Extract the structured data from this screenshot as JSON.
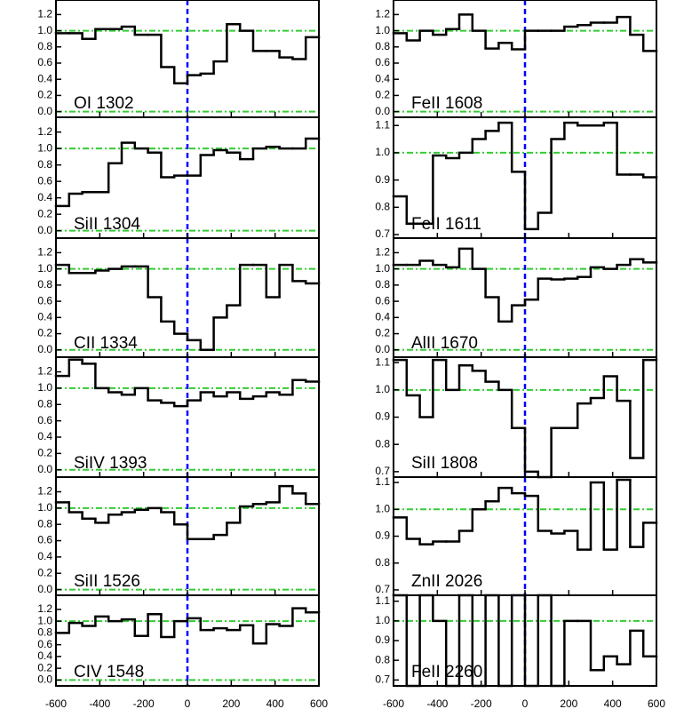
{
  "chart_data": [
    {
      "type": "step",
      "title": "OI 1302",
      "color": "#000000",
      "ref_color": "#33cc33",
      "zero_color": "#0000ff",
      "hlines": [
        0,
        1
      ],
      "vline": 0,
      "x": [
        -570,
        -510,
        -450,
        -390,
        -330,
        -270,
        -210,
        -150,
        -90,
        -30,
        30,
        90,
        150,
        210,
        270,
        330,
        390,
        450,
        510,
        570
      ],
      "values": [
        0.97,
        0.97,
        0.9,
        1.02,
        1.02,
        1.05,
        0.95,
        0.95,
        0.55,
        0.35,
        0.45,
        0.47,
        0.62,
        1.08,
        1.0,
        0.75,
        0.75,
        0.67,
        0.65,
        0.92
      ],
      "xlim": [
        -600,
        600
      ],
      "xticks": [
        -600,
        -400,
        -200,
        0,
        200,
        400,
        600
      ],
      "ylim": [
        -0.07,
        1.38
      ],
      "yticks": [
        {
          "value": 0,
          "label": "0.0"
        },
        0.2,
        0.4,
        0.6,
        0.8,
        {
          "value": 1,
          "label": "1.0"
        },
        1.2
      ]
    },
    {
      "type": "step",
      "title": "SiII 1304",
      "color": "#000000",
      "ref_color": "#33cc33",
      "zero_color": "#0000ff",
      "hlines": [
        0,
        1
      ],
      "vline": 0,
      "x": [
        -570,
        -510,
        -450,
        -390,
        -330,
        -270,
        -210,
        -150,
        -90,
        -30,
        30,
        90,
        150,
        210,
        270,
        330,
        390,
        450,
        510,
        570
      ],
      "values": [
        0.3,
        0.45,
        0.47,
        0.47,
        0.82,
        1.07,
        1.0,
        0.95,
        0.65,
        0.67,
        0.67,
        0.92,
        0.98,
        0.95,
        0.87,
        1.0,
        1.02,
        1.0,
        1.0,
        1.12
      ],
      "xlim": [
        -600,
        600
      ],
      "xticks": [
        -600,
        -400,
        -200,
        0,
        200,
        400,
        600
      ],
      "ylim": [
        -0.09,
        1.38
      ],
      "yticks": [
        {
          "value": 0,
          "label": "0.0"
        },
        0.2,
        0.4,
        0.6,
        0.8,
        {
          "value": 1,
          "label": "1.0"
        },
        1.2
      ]
    },
    {
      "type": "step",
      "title": "CII 1334",
      "color": "#000000",
      "ref_color": "#33cc33",
      "zero_color": "#0000ff",
      "hlines": [
        0,
        1
      ],
      "vline": 0,
      "x": [
        -570,
        -510,
        -450,
        -390,
        -330,
        -270,
        -210,
        -150,
        -90,
        -30,
        30,
        90,
        150,
        210,
        270,
        330,
        390,
        450,
        510,
        570
      ],
      "values": [
        1.05,
        0.95,
        0.95,
        0.98,
        1.0,
        1.03,
        1.03,
        0.65,
        0.35,
        0.2,
        0.12,
        0.0,
        0.4,
        0.55,
        1.05,
        1.05,
        0.65,
        1.05,
        0.85,
        0.82
      ],
      "xlim": [
        -600,
        600
      ],
      "xticks": [
        -600,
        -400,
        -200,
        0,
        200,
        400,
        600
      ],
      "ylim": [
        -0.09,
        1.38
      ],
      "yticks": [
        {
          "value": 0,
          "label": "0.0"
        },
        0.2,
        0.4,
        0.6,
        0.8,
        {
          "value": 1,
          "label": "1.0"
        },
        1.2
      ]
    },
    {
      "type": "step",
      "title": "SiIV 1393",
      "color": "#000000",
      "ref_color": "#33cc33",
      "zero_color": "#0000ff",
      "hlines": [
        0,
        1
      ],
      "vline": 0,
      "x": [
        -570,
        -510,
        -450,
        -390,
        -330,
        -270,
        -210,
        -150,
        -90,
        -30,
        30,
        90,
        150,
        210,
        270,
        330,
        390,
        450,
        510,
        570
      ],
      "values": [
        1.15,
        1.35,
        1.3,
        1.0,
        0.95,
        0.92,
        1.0,
        0.85,
        0.82,
        0.78,
        0.85,
        0.95,
        0.9,
        0.95,
        0.87,
        0.9,
        0.95,
        0.92,
        1.1,
        1.08
      ],
      "xlim": [
        -600,
        600
      ],
      "xticks": [
        -600,
        -400,
        -200,
        0,
        200,
        400,
        600
      ],
      "ylim": [
        -0.09,
        1.38
      ],
      "yticks": [
        {
          "value": 0,
          "label": "0.0"
        },
        0.2,
        0.4,
        0.6,
        0.8,
        {
          "value": 1,
          "label": "1.0"
        },
        1.2
      ]
    },
    {
      "type": "step",
      "title": "SiII 1526",
      "color": "#000000",
      "ref_color": "#33cc33",
      "zero_color": "#0000ff",
      "hlines": [
        0,
        1
      ],
      "vline": 0,
      "x": [
        -570,
        -510,
        -450,
        -390,
        -330,
        -270,
        -210,
        -150,
        -90,
        -30,
        30,
        90,
        150,
        210,
        270,
        330,
        390,
        450,
        510,
        570
      ],
      "values": [
        1.07,
        0.95,
        0.87,
        0.82,
        0.92,
        0.95,
        0.98,
        1.0,
        0.95,
        0.8,
        0.62,
        0.62,
        0.67,
        0.82,
        1.02,
        1.05,
        1.07,
        1.27,
        1.18,
        1.05
      ],
      "xlim": [
        -600,
        600
      ],
      "xticks": [
        -600,
        -400,
        -200,
        0,
        200,
        400,
        600
      ],
      "ylim": [
        -0.07,
        1.38
      ],
      "yticks": [
        {
          "value": 0,
          "label": "0.0"
        },
        0.2,
        0.4,
        0.6,
        0.8,
        {
          "value": 1,
          "label": "1.0"
        },
        1.2
      ]
    },
    {
      "type": "step",
      "title": "CIV 1548",
      "color": "#000000",
      "ref_color": "#33cc33",
      "zero_color": "#0000ff",
      "hlines": [
        0,
        1
      ],
      "vline": 0,
      "x": [
        -570,
        -510,
        -450,
        -390,
        -330,
        -270,
        -210,
        -150,
        -90,
        -30,
        30,
        90,
        150,
        210,
        270,
        330,
        390,
        450,
        510,
        570
      ],
      "values": [
        0.8,
        0.97,
        0.92,
        1.08,
        1.0,
        1.03,
        0.75,
        1.12,
        0.73,
        1.0,
        1.05,
        0.85,
        0.88,
        0.85,
        0.93,
        0.62,
        0.95,
        0.92,
        1.22,
        1.15
      ],
      "xlim": [
        -600,
        600
      ],
      "xticks": [
        -600,
        -400,
        -200,
        0,
        200,
        400,
        600
      ],
      "ylim": [
        -0.1,
        1.44
      ],
      "yticks": [
        {
          "value": 0,
          "label": "0.0"
        },
        0.2,
        0.4,
        0.6,
        0.8,
        {
          "value": 1,
          "label": "1.0"
        },
        1.2
      ]
    },
    {
      "type": "step",
      "title": "FeII 1608",
      "color": "#000000",
      "ref_color": "#33cc33",
      "zero_color": "#0000ff",
      "hlines": [
        0,
        1
      ],
      "vline": 0,
      "x": [
        -570,
        -510,
        -450,
        -390,
        -330,
        -270,
        -210,
        -150,
        -90,
        -30,
        30,
        90,
        150,
        210,
        270,
        330,
        390,
        450,
        510,
        570
      ],
      "values": [
        0.97,
        0.88,
        1.0,
        0.95,
        1.02,
        1.2,
        1.0,
        0.78,
        0.85,
        0.77,
        1.0,
        1.0,
        1.0,
        1.05,
        1.07,
        1.1,
        1.1,
        1.17,
        0.95,
        0.75
      ],
      "xlim": [
        -600,
        600
      ],
      "xticks": [
        -600,
        -400,
        -200,
        0,
        200,
        400,
        600
      ],
      "ylim": [
        -0.07,
        1.38
      ],
      "yticks": [
        {
          "value": 0,
          "label": "0.0"
        },
        0.2,
        0.4,
        0.6,
        0.8,
        {
          "value": 1,
          "label": "1.0"
        },
        1.2
      ]
    },
    {
      "type": "step",
      "title": "FeII 1611",
      "color": "#000000",
      "ref_color": "#33cc33",
      "zero_color": "#0000ff",
      "hlines": [
        1
      ],
      "vline": 0,
      "x": [
        -570,
        -510,
        -450,
        -390,
        -330,
        -270,
        -210,
        -150,
        -90,
        -30,
        30,
        90,
        150,
        210,
        270,
        330,
        390,
        450,
        510,
        570
      ],
      "values": [
        0.84,
        0.74,
        0.74,
        0.99,
        0.98,
        1.0,
        1.05,
        1.08,
        1.11,
        0.93,
        0.72,
        0.78,
        1.05,
        1.11,
        1.1,
        1.1,
        1.11,
        0.92,
        0.92,
        0.91
      ],
      "xlim": [
        -600,
        600
      ],
      "xticks": [
        -600,
        -400,
        -200,
        0,
        200,
        400,
        600
      ],
      "ylim": [
        0.687,
        1.13
      ],
      "yticks": [
        0.7,
        0.8,
        0.9,
        {
          "value": 1,
          "label": "1.0"
        },
        1.1
      ]
    },
    {
      "type": "step",
      "title": "AlII 1670",
      "color": "#000000",
      "ref_color": "#33cc33",
      "zero_color": "#0000ff",
      "hlines": [
        0,
        1
      ],
      "vline": 0,
      "x": [
        -570,
        -510,
        -450,
        -390,
        -330,
        -270,
        -210,
        -150,
        -90,
        -30,
        30,
        90,
        150,
        210,
        270,
        330,
        390,
        450,
        510,
        570
      ],
      "values": [
        1.05,
        1.05,
        1.1,
        1.05,
        1.02,
        1.25,
        1.0,
        0.65,
        0.35,
        0.55,
        0.62,
        0.88,
        0.87,
        0.88,
        0.9,
        1.02,
        1.0,
        1.05,
        1.12,
        1.08
      ],
      "xlim": [
        -600,
        600
      ],
      "xticks": [
        -600,
        -400,
        -200,
        0,
        200,
        400,
        600
      ],
      "ylim": [
        -0.09,
        1.38
      ],
      "yticks": [
        {
          "value": 0,
          "label": "0.0"
        },
        0.2,
        0.4,
        0.6,
        0.8,
        {
          "value": 1,
          "label": "1.0"
        },
        1.2
      ]
    },
    {
      "type": "step",
      "title": "SiII 1808",
      "color": "#000000",
      "ref_color": "#33cc33",
      "zero_color": "#0000ff",
      "hlines": [
        1
      ],
      "vline": 0,
      "x": [
        -570,
        -510,
        -450,
        -390,
        -330,
        -270,
        -210,
        -150,
        -90,
        -30,
        30,
        90,
        150,
        210,
        270,
        330,
        390,
        450,
        510,
        570
      ],
      "values": [
        1.11,
        0.98,
        0.9,
        1.11,
        1.0,
        1.09,
        1.07,
        1.03,
        1.0,
        0.86,
        0.7,
        0.68,
        0.86,
        0.86,
        0.95,
        0.97,
        1.05,
        0.96,
        0.75,
        1.11
      ],
      "xlim": [
        -600,
        600
      ],
      "xticks": [
        -600,
        -400,
        -200,
        0,
        200,
        400,
        600
      ],
      "ylim": [
        0.68,
        1.12
      ],
      "yticks": [
        0.7,
        0.8,
        0.9,
        {
          "value": 1,
          "label": "1.0"
        },
        1.1
      ]
    },
    {
      "type": "step",
      "title": "ZnII 2026",
      "color": "#000000",
      "ref_color": "#33cc33",
      "zero_color": "#0000ff",
      "hlines": [
        1
      ],
      "vline": 0,
      "x": [
        -570,
        -510,
        -450,
        -390,
        -330,
        -270,
        -210,
        -150,
        -90,
        -30,
        30,
        90,
        150,
        210,
        270,
        330,
        390,
        450,
        510,
        570
      ],
      "values": [
        0.97,
        0.89,
        0.87,
        0.88,
        0.88,
        0.92,
        1.0,
        1.03,
        1.08,
        1.06,
        1.05,
        0.92,
        0.91,
        0.92,
        0.85,
        1.1,
        0.85,
        1.11,
        0.86,
        0.95
      ],
      "xlim": [
        -600,
        600
      ],
      "xticks": [
        -600,
        -400,
        -200,
        0,
        200,
        400,
        600
      ],
      "ylim": [
        0.68,
        1.12
      ],
      "yticks": [
        0.7,
        0.8,
        0.9,
        {
          "value": 1,
          "label": "1.0"
        },
        1.1
      ]
    },
    {
      "type": "step",
      "title": "FeII 2260",
      "color": "#000000",
      "ref_color": "#33cc33",
      "zero_color": "#0000ff",
      "hlines": [
        1
      ],
      "vline": 0,
      "x": [
        -570,
        -510,
        -450,
        -390,
        -330,
        -270,
        -210,
        -150,
        -90,
        -30,
        30,
        90,
        150,
        210,
        270,
        330,
        390,
        450,
        510,
        570
      ],
      "values": [
        1.13,
        0.67,
        1.13,
        1.0,
        0.67,
        1.13,
        0.67,
        1.13,
        0.67,
        1.13,
        0.67,
        1.13,
        0.67,
        1.0,
        1.0,
        0.75,
        0.82,
        0.78,
        0.95,
        0.82
      ],
      "xlim": [
        -600,
        600
      ],
      "xticks": [
        -600,
        -400,
        -200,
        0,
        200,
        400,
        600
      ],
      "ylim": [
        0.67,
        1.13
      ],
      "yticks": [
        0.7,
        0.8,
        0.9,
        {
          "value": 1,
          "label": "1.0"
        },
        1.1
      ]
    }
  ]
}
